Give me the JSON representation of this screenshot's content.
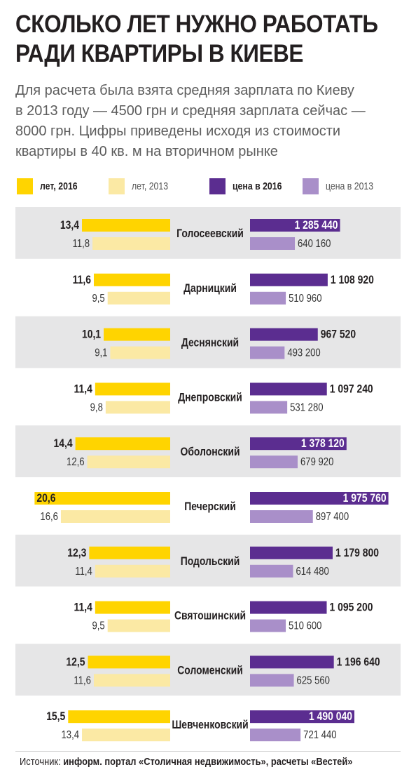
{
  "title_lines": [
    "СКОЛЬКО ЛЕТ НУЖНО РАБОТАТЬ",
    "РАДИ КВАРТИРЫ В КИЕВЕ"
  ],
  "subtitle_lines": [
    "Для расчета была взята средняя зарплата по Киеву",
    "в 2013 году — 4500 грн и средняя зарплата сейчас —",
    "8000 грн. Цифры приведены исходя из стоимости",
    "квартиры в 40 кв. м на вторичном рынке"
  ],
  "legend": [
    {
      "label": "лет, 2016",
      "color": "#ffd400",
      "weight": "bold"
    },
    {
      "label": "лет, 2013",
      "color": "#fbe9a4",
      "weight": "light"
    },
    {
      "label": "цена в 2016",
      "color": "#5b2d90",
      "weight": "bold"
    },
    {
      "label": "цена в 2013",
      "color": "#a98fc9",
      "weight": "light"
    }
  ],
  "colors": {
    "years_2016": "#ffd400",
    "years_2013": "#fbe9a4",
    "price_2016": "#5b2d90",
    "price_2013": "#a98fc9",
    "row_band": "#e6e6e7"
  },
  "chart_data": {
    "type": "bar",
    "layout": "butterfly",
    "categories": [
      "Голосеевский",
      "Дарницкий",
      "Деснянский",
      "Днепровский",
      "Оболонский",
      "Печерский",
      "Подольский",
      "Святошинский",
      "Соломенский",
      "Шевченковский"
    ],
    "series": [
      {
        "name": "лет, 2016",
        "side": "left",
        "labels": [
          "13,4",
          "11,6",
          "10,1",
          "11,4",
          "14,4",
          "20,6",
          "12,3",
          "11,4",
          "12,5",
          "15,5"
        ],
        "values": [
          13.4,
          11.6,
          10.1,
          11.4,
          14.4,
          20.6,
          12.3,
          11.4,
          12.5,
          15.5
        ]
      },
      {
        "name": "лет, 2013",
        "side": "left",
        "labels": [
          "11,8",
          "9,5",
          "9,1",
          "9,8",
          "12,6",
          "16,6",
          "11,4",
          "9,5",
          "11,6",
          "13,4"
        ],
        "values": [
          11.8,
          9.5,
          9.1,
          9.8,
          12.6,
          16.6,
          11.4,
          9.5,
          11.6,
          13.4
        ]
      },
      {
        "name": "цена в 2016",
        "side": "right",
        "labels": [
          "1 285 440",
          "1 108 920",
          "967 520",
          "1 097 240",
          "1 378 120",
          "1 975 760",
          "1 179 800",
          "1 095 200",
          "1 196 640",
          "1 490 040"
        ],
        "values": [
          1285440,
          1108920,
          967520,
          1097240,
          1378120,
          1975760,
          1179800,
          1095200,
          1196640,
          1490040
        ]
      },
      {
        "name": "цена в 2013",
        "side": "right",
        "labels": [
          "640 160",
          "510 960",
          "493 200",
          "531 280",
          "679 920",
          "897 400",
          "614 480",
          "510 600",
          "625 560",
          "721 440"
        ],
        "values": [
          640160,
          510960,
          493200,
          531280,
          679920,
          897400,
          614480,
          510600,
          625560,
          721440
        ]
      }
    ]
  },
  "source": {
    "prefix": "Источник:",
    "text": "информ. портал «Столичная недвижимость», расчеты «Вестей»"
  }
}
